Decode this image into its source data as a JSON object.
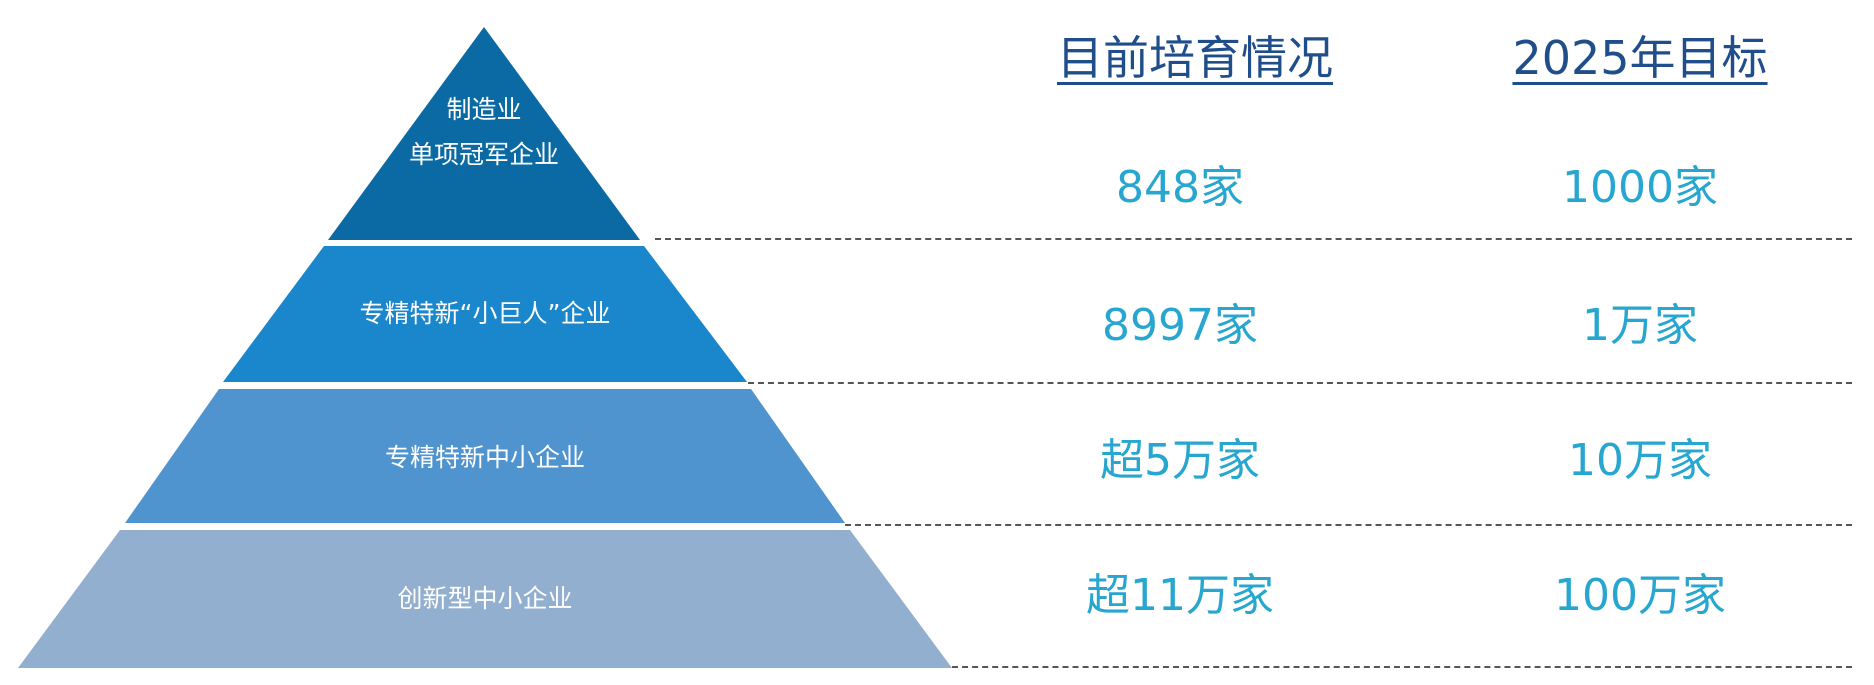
{
  "colors": {
    "tier_1": "#0b6aa3",
    "tier_2": "#1a86cc",
    "tier_3": "#4f93cf",
    "tier_4": "#93afcf",
    "header_text": "#1f4e8a",
    "value_text": "#27a6cf",
    "divider": "#555555"
  },
  "headers": {
    "current": "目前培育情况",
    "target": "2025年目标"
  },
  "tiers": [
    {
      "label_line1": "制造业",
      "label_line2": "单项冠军企业",
      "current": "848家",
      "target": "1000家"
    },
    {
      "label": "专精特新“小巨人”企业",
      "current": "8997家",
      "target": "1万家"
    },
    {
      "label": "专精特新中小企业",
      "current": "超5万家",
      "target": "10万家"
    },
    {
      "label": "创新型中小企业",
      "current": "超11万家",
      "target": "100万家"
    }
  ]
}
